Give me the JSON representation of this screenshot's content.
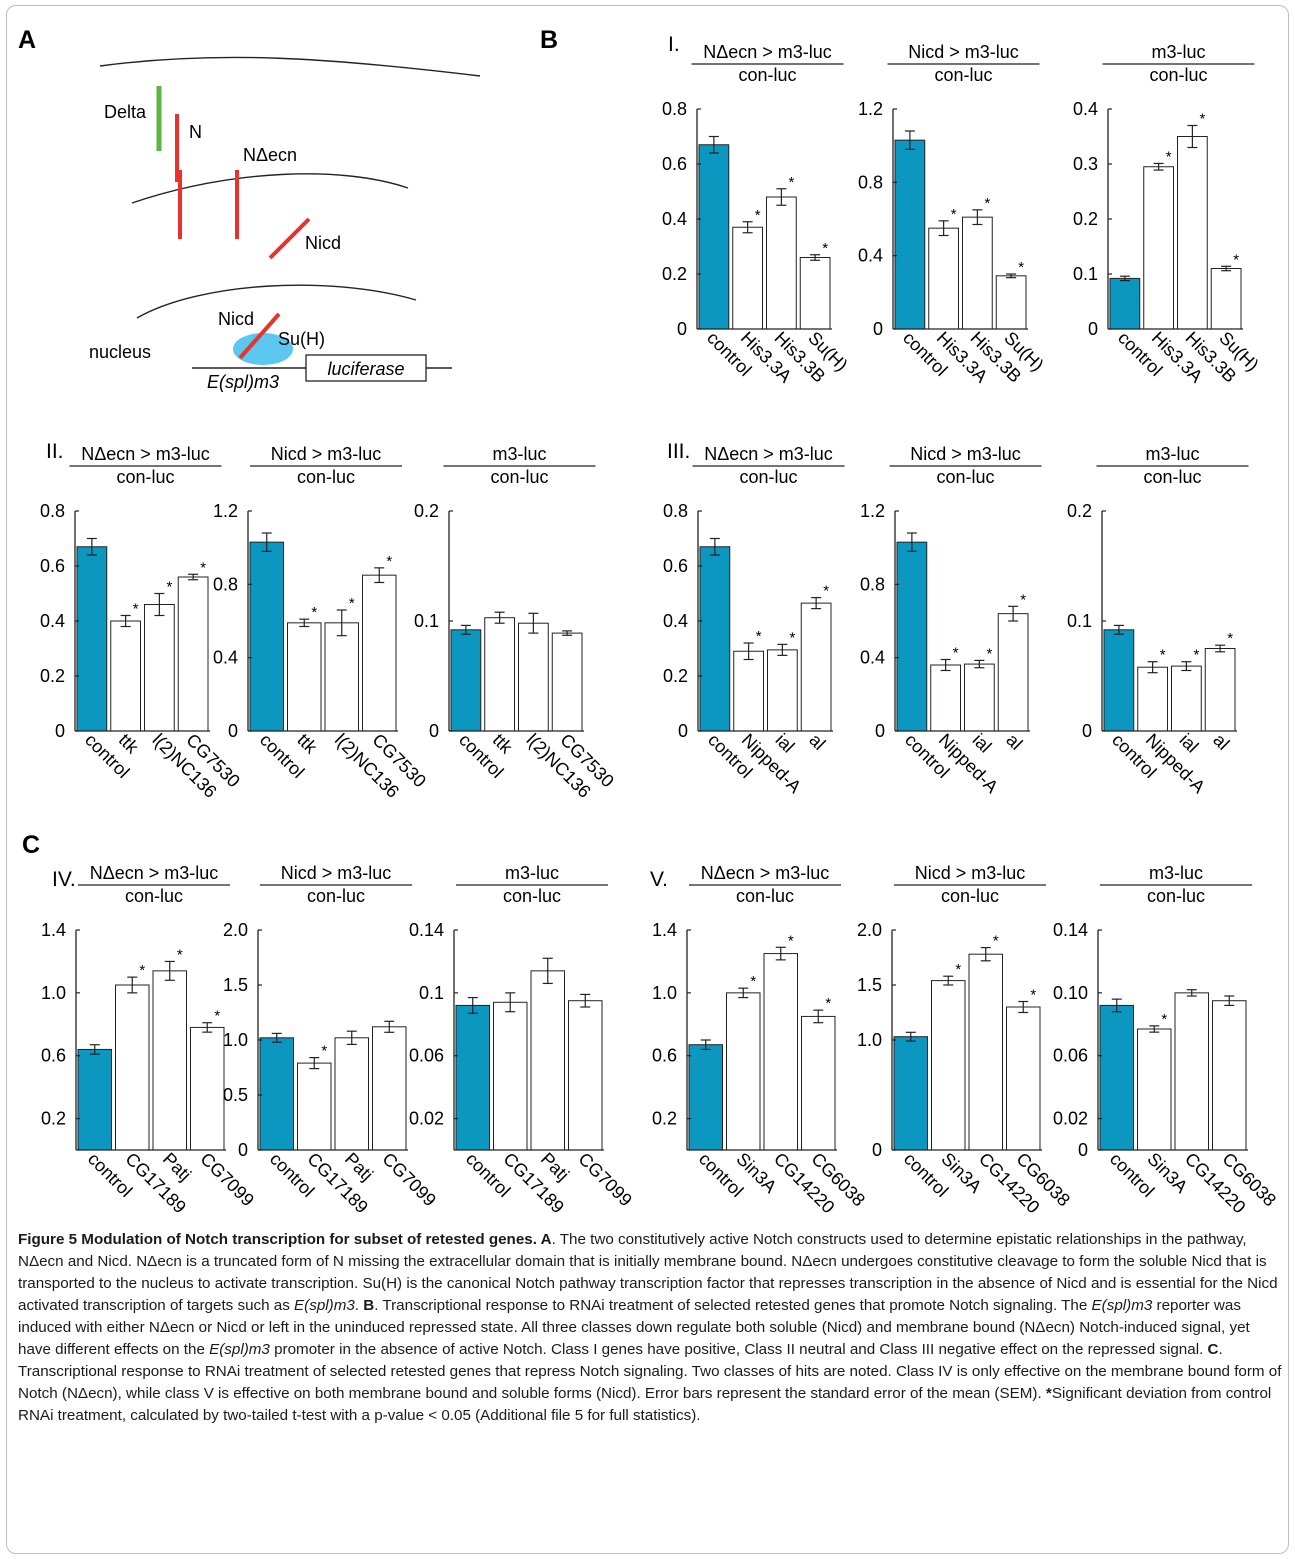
{
  "panels": {
    "A": "A",
    "B": "B",
    "C": "C"
  },
  "row_labels": {
    "I": "I.",
    "II": "II.",
    "III": "III.",
    "IV": "IV.",
    "V": "V."
  },
  "diagram": {
    "delta": "Delta",
    "n": "N",
    "necn": "NΔecn",
    "nicd": "Nicd",
    "nicd_nucleus": "Nicd",
    "suh": "Su(H)",
    "nucleus": "nucleus",
    "promoter": "E(spl)m3",
    "reporter": "luciferase"
  },
  "colors": {
    "control": "#0b97bf",
    "bar": "#ffffff",
    "delta": "#5cb646",
    "notch": "#e8322b",
    "suh": "#5bc6ee"
  },
  "chart_data": [
    {
      "type": "bar",
      "row": "I",
      "title": "NΔecn > m3-luc",
      "subtitle": "con-luc",
      "categories": [
        "control",
        "His3.3A",
        "His3.3B",
        "Su(H)"
      ],
      "values": [
        0.67,
        0.37,
        0.48,
        0.26
      ],
      "errors": [
        0.03,
        0.02,
        0.03,
        0.01
      ],
      "significant": [
        false,
        true,
        true,
        true
      ],
      "yticks": [
        "0",
        "0.2",
        "0.4",
        "0.6",
        "0.8"
      ],
      "ylim": [
        0,
        0.8
      ]
    },
    {
      "type": "bar",
      "row": "I",
      "title": "Nicd > m3-luc",
      "subtitle": "con-luc",
      "categories": [
        "control",
        "His3.3A",
        "His3.3B",
        "Su(H)"
      ],
      "values": [
        1.03,
        0.55,
        0.61,
        0.29
      ],
      "errors": [
        0.05,
        0.04,
        0.04,
        0.01
      ],
      "significant": [
        false,
        true,
        true,
        true
      ],
      "yticks": [
        "0",
        "0.4",
        "0.8",
        "1.2"
      ],
      "ylim": [
        0,
        1.2
      ]
    },
    {
      "type": "bar",
      "row": "I",
      "title": "m3-luc",
      "subtitle": "con-luc",
      "categories": [
        "control",
        "His3.3A",
        "His3.3B",
        "Su(H)"
      ],
      "values": [
        0.092,
        0.295,
        0.35,
        0.11
      ],
      "errors": [
        0.004,
        0.006,
        0.02,
        0.004
      ],
      "significant": [
        false,
        true,
        true,
        true
      ],
      "yticks": [
        "0",
        "0.1",
        "0.2",
        "0.3",
        "0.4"
      ],
      "ylim": [
        0,
        0.4
      ]
    },
    {
      "type": "bar",
      "row": "II",
      "title": "NΔecn > m3-luc",
      "subtitle": "con-luc",
      "categories": [
        "control",
        "ttk",
        "l(2)NC136",
        "CG7530"
      ],
      "values": [
        0.67,
        0.4,
        0.46,
        0.56
      ],
      "errors": [
        0.03,
        0.02,
        0.04,
        0.01
      ],
      "significant": [
        false,
        true,
        true,
        true
      ],
      "yticks": [
        "0",
        "0.2",
        "0.4",
        "0.6",
        "0.8"
      ],
      "ylim": [
        0,
        0.8
      ]
    },
    {
      "type": "bar",
      "row": "II",
      "title": "Nicd > m3-luc",
      "subtitle": "con-luc",
      "categories": [
        "control",
        "ttk",
        "l(2)NC136",
        "CG7530"
      ],
      "values": [
        1.03,
        0.59,
        0.59,
        0.85
      ],
      "errors": [
        0.05,
        0.02,
        0.07,
        0.04
      ],
      "significant": [
        false,
        true,
        true,
        true
      ],
      "yticks": [
        "0",
        "0.4",
        "0.8",
        "1.2"
      ],
      "ylim": [
        0,
        1.2
      ]
    },
    {
      "type": "bar",
      "row": "II",
      "title": "m3-luc",
      "subtitle": "con-luc",
      "categories": [
        "control",
        "ttk",
        "l(2)NC136",
        "CG7530"
      ],
      "values": [
        0.092,
        0.103,
        0.098,
        0.089
      ],
      "errors": [
        0.004,
        0.005,
        0.009,
        0.002
      ],
      "significant": [
        false,
        false,
        false,
        false
      ],
      "yticks": [
        "0",
        "0.1",
        "0.2"
      ],
      "ylim": [
        0,
        0.2
      ]
    },
    {
      "type": "bar",
      "row": "III",
      "title": "NΔecn > m3-luc",
      "subtitle": "con-luc",
      "categories": [
        "control",
        "Nipped-A",
        "ial",
        "al"
      ],
      "values": [
        0.67,
        0.29,
        0.295,
        0.465
      ],
      "errors": [
        0.03,
        0.03,
        0.02,
        0.02
      ],
      "significant": [
        false,
        true,
        true,
        true
      ],
      "yticks": [
        "0",
        "0.2",
        "0.4",
        "0.6",
        "0.8"
      ],
      "ylim": [
        0,
        0.8
      ]
    },
    {
      "type": "bar",
      "row": "III",
      "title": "Nicd > m3-luc",
      "subtitle": "con-luc",
      "categories": [
        "control",
        "Nipped-A",
        "ial",
        "al"
      ],
      "values": [
        1.03,
        0.36,
        0.365,
        0.64
      ],
      "errors": [
        0.05,
        0.03,
        0.02,
        0.04
      ],
      "significant": [
        false,
        true,
        true,
        true
      ],
      "yticks": [
        "0",
        "0.4",
        "0.8",
        "1.2"
      ],
      "ylim": [
        0,
        1.2
      ]
    },
    {
      "type": "bar",
      "row": "III",
      "title": "m3-luc",
      "subtitle": "con-luc",
      "categories": [
        "control",
        "Nipped-A",
        "ial",
        "al"
      ],
      "values": [
        0.092,
        0.058,
        0.059,
        0.075
      ],
      "errors": [
        0.004,
        0.005,
        0.004,
        0.003
      ],
      "significant": [
        false,
        true,
        true,
        true
      ],
      "yticks": [
        "0",
        "0.1",
        "0.2"
      ],
      "ylim": [
        0,
        0.2
      ]
    },
    {
      "type": "bar",
      "row": "IV",
      "title": "NΔecn > m3-luc",
      "subtitle": "con-luc",
      "categories": [
        "control",
        "CG17189",
        "Patj",
        "CG7099"
      ],
      "values": [
        0.64,
        1.05,
        1.14,
        0.78
      ],
      "errors": [
        0.03,
        0.05,
        0.06,
        0.03
      ],
      "significant": [
        false,
        true,
        true,
        true
      ],
      "yticks": [
        "0.2",
        "0.6",
        "1.0",
        "1.4"
      ],
      "ylim": [
        0,
        1.4
      ]
    },
    {
      "type": "bar",
      "row": "IV",
      "title": "Nicd > m3-luc",
      "subtitle": "con-luc",
      "categories": [
        "control",
        "CG17189",
        "Patj",
        "CG7099"
      ],
      "values": [
        1.02,
        0.79,
        1.02,
        1.12
      ],
      "errors": [
        0.04,
        0.05,
        0.06,
        0.05
      ],
      "significant": [
        false,
        true,
        false,
        false
      ],
      "yticks": [
        "0",
        "0.5",
        "1.0",
        "1.5",
        "2.0"
      ],
      "ylim": [
        0,
        2.0
      ]
    },
    {
      "type": "bar",
      "row": "IV",
      "title": "m3-luc",
      "subtitle": "con-luc",
      "categories": [
        "control",
        "CG17189",
        "Patj",
        "CG7099"
      ],
      "values": [
        0.092,
        0.094,
        0.114,
        0.095
      ],
      "errors": [
        0.005,
        0.006,
        0.008,
        0.004
      ],
      "significant": [
        false,
        false,
        false,
        false
      ],
      "yticks": [
        "0.02",
        "0.06",
        "0.1",
        "0.14"
      ],
      "ylim": [
        0,
        0.14
      ]
    },
    {
      "type": "bar",
      "row": "V",
      "title": "NΔecn > m3-luc",
      "subtitle": "con-luc",
      "categories": [
        "control",
        "Sin3A",
        "CG14220",
        "CG6038"
      ],
      "values": [
        0.67,
        1.0,
        1.25,
        0.85
      ],
      "errors": [
        0.03,
        0.03,
        0.04,
        0.04
      ],
      "significant": [
        false,
        true,
        true,
        true
      ],
      "yticks": [
        "0.2",
        "0.6",
        "1.0",
        "1.4"
      ],
      "ylim": [
        0,
        1.4
      ]
    },
    {
      "type": "bar",
      "row": "V",
      "title": "Nicd > m3-luc",
      "subtitle": "con-luc",
      "categories": [
        "control",
        "Sin3A",
        "CG14220",
        "CG6038"
      ],
      "values": [
        1.03,
        1.54,
        1.78,
        1.3
      ],
      "errors": [
        0.04,
        0.04,
        0.06,
        0.05
      ],
      "significant": [
        false,
        true,
        true,
        true
      ],
      "yticks": [
        "0",
        "1.0",
        "1.5",
        "2.0"
      ],
      "ylim": [
        0,
        2.0
      ]
    },
    {
      "type": "bar",
      "row": "V",
      "title": "m3-luc",
      "subtitle": "con-luc",
      "categories": [
        "control",
        "Sin3A",
        "CG14220",
        "CG6038"
      ],
      "values": [
        0.092,
        0.077,
        0.1,
        0.095
      ],
      "errors": [
        0.004,
        0.002,
        0.002,
        0.003
      ],
      "significant": [
        false,
        true,
        false,
        false
      ],
      "yticks": [
        "0",
        "0.02",
        "0.06",
        "0.10",
        "0.14"
      ],
      "ylim": [
        0,
        0.14
      ]
    }
  ],
  "caption": {
    "fig_label": "Figure 5 Modulation of Notch transcription for subset of retested genes",
    "a_label": "A",
    "a_text": ". The two constitutively active Notch constructs used to determine epistatic relationships in the pathway, NΔecn and Nicd. NΔecn is a truncated form of N missing the extracellular domain that is initially membrane bound. NΔecn undergoes constitutive cleavage to form the soluble Nicd that is transported to the nucleus to activate transcription. Su(H) is the canonical Notch pathway transcription factor that represses transcription in the absence of Nicd and is essential for the Nicd activated transcription of targets such as ",
    "a_gene": "E(spl)m3",
    "a_end": ". ",
    "b_label": "B",
    "b_text1": ". Transcriptional response to RNAi treatment of selected retested genes that promote Notch signaling. The ",
    "b_gene1": "E(spl)m3",
    "b_text2": " reporter was induced with either NΔecn or Nicd or left in the uninduced repressed state. All three classes down regulate both soluble (Nicd) and membrane bound (NΔecn) Notch-induced signal, yet have different effects on the ",
    "b_gene2": "E(spl)m3",
    "b_text3": " promoter in the absence of active Notch. Class I genes have positive, Class II neutral and Class III negative effect on the repressed signal. ",
    "c_label": "C",
    "c_text": ". Transcriptional response to RNAi treatment of selected retested genes that repress Notch signaling. Two classes of hits are noted. Class IV is only effective on the membrane bound form of Notch (NΔecn), while class V is effective on both membrane bound and soluble forms (Nicd). Error bars represent the standard error of the mean (SEM). ",
    "star": "*",
    "star_text": "Significant deviation from control RNAi treatment, calculated by two-tailed t-test with a p-value < 0.05 (Additional file 5 for full statistics)."
  }
}
